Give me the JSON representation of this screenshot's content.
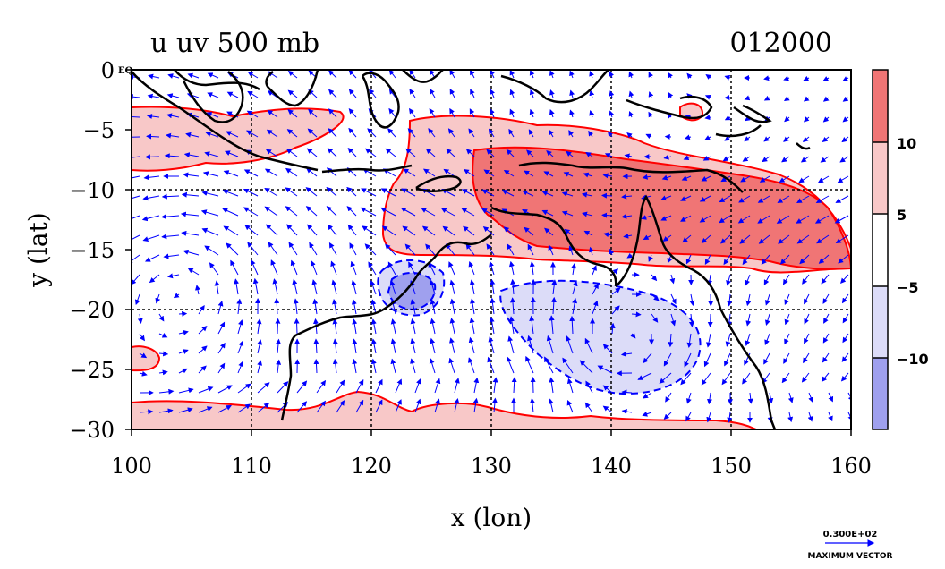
{
  "chart_data": {
    "type": "map",
    "title": "u uv 500 mb",
    "date_label": "012000",
    "xlabel": "x (lon)",
    "ylabel": "y (lat)",
    "xlim": [
      100,
      160
    ],
    "ylim": [
      -30,
      0
    ],
    "x_ticks": [
      "100",
      "110",
      "120",
      "130",
      "140",
      "150",
      "160"
    ],
    "y_ticks": [
      "0",
      "−5",
      "−10",
      "−15",
      "−20",
      "−25",
      "−30"
    ],
    "eq_label": "EQ",
    "grid": true,
    "colorbar": {
      "levels": [
        "10",
        "5",
        "−5",
        "−10"
      ],
      "colors": [
        "#f07575",
        "#f8c8c8",
        "#ffffff",
        "#dcdcf8",
        "#9fa0ee"
      ]
    },
    "contour_color": "#ff0000",
    "vector_color": "#0000ff",
    "vector_key": {
      "value_label": "0.300E+02",
      "caption": "MAXIMUM VECTOR"
    }
  }
}
